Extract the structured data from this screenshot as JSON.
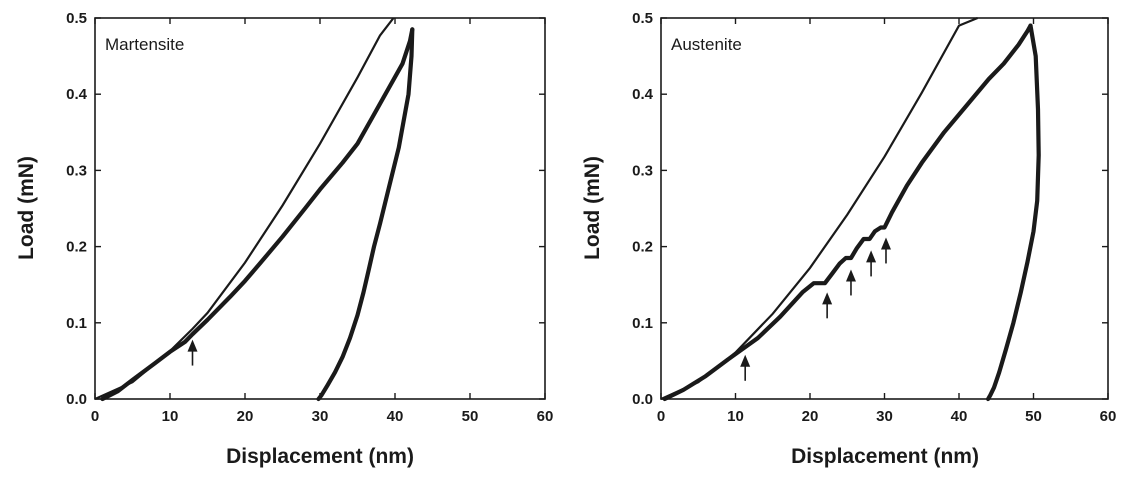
{
  "chart_data": [
    {
      "type": "line",
      "panel_label": "Martensite",
      "xlabel": "Displacement (nm)",
      "ylabel": "Load (mN)",
      "xlim": [
        0,
        60
      ],
      "ylim": [
        0,
        0.5
      ],
      "xticks": [
        0,
        10,
        20,
        30,
        40,
        50,
        60
      ],
      "yticks": [
        0.0,
        0.1,
        0.2,
        0.3,
        0.4,
        0.5
      ],
      "xtick_labels": [
        "0",
        "10",
        "20",
        "30",
        "40",
        "50",
        "60"
      ],
      "ytick_labels": [
        "0.0",
        "0.1",
        "0.2",
        "0.3",
        "0.4",
        "0.5"
      ],
      "grid": false,
      "series": [
        {
          "role": "elastic-fit",
          "x": [
            0,
            5,
            10,
            13,
            15,
            20,
            25,
            30,
            35,
            38,
            39.8
          ],
          "y": [
            0,
            0.022,
            0.063,
            0.092,
            0.113,
            0.179,
            0.254,
            0.335,
            0.422,
            0.477,
            0.5
          ]
        },
        {
          "role": "loading",
          "x": [
            1,
            3,
            5,
            8,
            10,
            12,
            13,
            15,
            18,
            20,
            22,
            25,
            28,
            30,
            33,
            35,
            37,
            39,
            41,
            42,
            42.3
          ],
          "y": [
            0,
            0.01,
            0.025,
            0.047,
            0.062,
            0.075,
            0.085,
            0.104,
            0.134,
            0.155,
            0.178,
            0.213,
            0.25,
            0.275,
            0.31,
            0.335,
            0.37,
            0.405,
            0.44,
            0.47,
            0.485
          ]
        },
        {
          "role": "unloading",
          "x": [
            42.3,
            42.2,
            41.8,
            40.5,
            39,
            38,
            37.2,
            36.5,
            35.8,
            35,
            34,
            33,
            32,
            31,
            30.2,
            29.8
          ],
          "y": [
            0.485,
            0.45,
            0.4,
            0.33,
            0.27,
            0.23,
            0.2,
            0.17,
            0.14,
            0.11,
            0.08,
            0.055,
            0.035,
            0.018,
            0.005,
            0
          ]
        }
      ],
      "annotations": [
        {
          "type": "arrow",
          "x": 13,
          "y": 0.078
        }
      ]
    },
    {
      "type": "line",
      "panel_label": "Austenite",
      "xlabel": "Displacement (nm)",
      "ylabel": "Load (mN)",
      "xlim": [
        0,
        60
      ],
      "ylim": [
        0,
        0.5
      ],
      "xticks": [
        0,
        10,
        20,
        30,
        40,
        50,
        60
      ],
      "yticks": [
        0.0,
        0.1,
        0.2,
        0.3,
        0.4,
        0.5
      ],
      "xtick_labels": [
        "0",
        "10",
        "20",
        "30",
        "40",
        "50",
        "60"
      ],
      "ytick_labels": [
        "0.0",
        "0.1",
        "0.2",
        "0.3",
        "0.4",
        "0.5"
      ],
      "grid": false,
      "series": [
        {
          "role": "elastic-fit",
          "x": [
            0,
            5,
            10,
            15,
            20,
            25,
            30,
            35,
            40,
            42.5
          ],
          "y": [
            0,
            0.022,
            0.061,
            0.112,
            0.172,
            0.242,
            0.318,
            0.402,
            0.49,
            0.5
          ]
        },
        {
          "role": "loading",
          "x": [
            0.5,
            3,
            6,
            9,
            11,
            13,
            16,
            19,
            20.5,
            22,
            23,
            24,
            24.8,
            25.5,
            26.3,
            27.2,
            28,
            28.7,
            29.5,
            30,
            31,
            33,
            35,
            38,
            41,
            44,
            46,
            48,
            49.2,
            49.6
          ],
          "y": [
            0,
            0.012,
            0.03,
            0.052,
            0.066,
            0.08,
            0.108,
            0.14,
            0.152,
            0.152,
            0.165,
            0.178,
            0.185,
            0.185,
            0.198,
            0.21,
            0.21,
            0.22,
            0.225,
            0.225,
            0.245,
            0.28,
            0.31,
            0.35,
            0.385,
            0.42,
            0.44,
            0.465,
            0.483,
            0.49
          ]
        },
        {
          "role": "unloading",
          "x": [
            49.6,
            50.3,
            50.6,
            50.7,
            50.5,
            50,
            49.2,
            48.3,
            47.3,
            46.3,
            45.4,
            44.7,
            44.2,
            43.9
          ],
          "y": [
            0.49,
            0.45,
            0.38,
            0.32,
            0.26,
            0.22,
            0.18,
            0.14,
            0.1,
            0.065,
            0.035,
            0.015,
            0.005,
            0
          ]
        }
      ],
      "annotations": [
        {
          "type": "arrow",
          "x": 11.3,
          "y": 0.058
        },
        {
          "type": "arrow",
          "x": 22.3,
          "y": 0.14
        },
        {
          "type": "arrow",
          "x": 25.5,
          "y": 0.17
        },
        {
          "type": "arrow",
          "x": 28.2,
          "y": 0.195
        },
        {
          "type": "arrow",
          "x": 30.2,
          "y": 0.212
        }
      ]
    }
  ]
}
